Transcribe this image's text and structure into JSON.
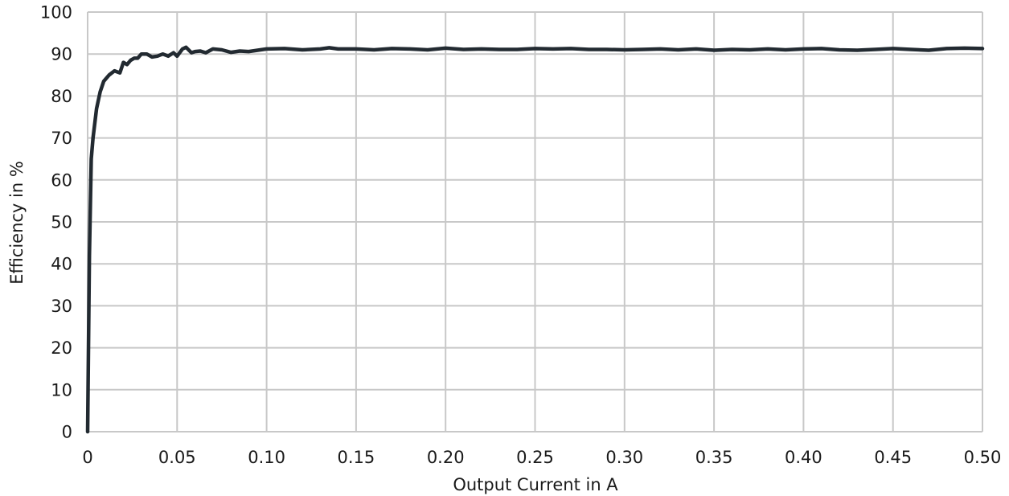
{
  "chart_data": {
    "type": "line",
    "title": "",
    "xlabel": "Output Current in A",
    "ylabel": "Efficiency in %",
    "xlim": [
      0,
      0.5
    ],
    "ylim": [
      0,
      100
    ],
    "grid": true,
    "x_ticks": [
      "0",
      "0.05",
      "0.10",
      "0.15",
      "0.20",
      "0.25",
      "0.30",
      "0.35",
      "0.40",
      "0.45",
      "0.50"
    ],
    "y_ticks": [
      "0",
      "10",
      "20",
      "30",
      "40",
      "50",
      "60",
      "70",
      "80",
      "90",
      "100"
    ],
    "colors": {
      "line": "#222a31",
      "grid": "#c8c8c8",
      "text": "#1a1a1a"
    },
    "series": [
      {
        "x": [
          0,
          0.001,
          0.002,
          0.003,
          0.005,
          0.007,
          0.009,
          0.012,
          0.015,
          0.018,
          0.02,
          0.022,
          0.024,
          0.026,
          0.028,
          0.03,
          0.033,
          0.036,
          0.039,
          0.042,
          0.045,
          0.048,
          0.05,
          0.053,
          0.055,
          0.058,
          0.06,
          0.063,
          0.066,
          0.07,
          0.075,
          0.08,
          0.085,
          0.09,
          0.1,
          0.11,
          0.12,
          0.13,
          0.135,
          0.14,
          0.15,
          0.16,
          0.17,
          0.18,
          0.19,
          0.2,
          0.21,
          0.22,
          0.23,
          0.24,
          0.25,
          0.26,
          0.27,
          0.28,
          0.29,
          0.3,
          0.31,
          0.32,
          0.33,
          0.34,
          0.35,
          0.36,
          0.37,
          0.38,
          0.39,
          0.4,
          0.41,
          0.42,
          0.43,
          0.44,
          0.45,
          0.46,
          0.47,
          0.48,
          0.49,
          0.5
        ],
        "y": [
          0,
          42,
          65,
          70,
          77,
          81,
          83.5,
          85,
          86,
          85.5,
          88,
          87.5,
          88.5,
          89,
          89,
          90,
          90,
          89.3,
          89.5,
          90,
          89.5,
          90.3,
          89.5,
          91.2,
          91.6,
          90.3,
          90.6,
          90.7,
          90.3,
          91.2,
          91,
          90.4,
          90.7,
          90.6,
          91.2,
          91.3,
          91,
          91.2,
          91.5,
          91.2,
          91.2,
          91,
          91.3,
          91.2,
          91,
          91.4,
          91.1,
          91.2,
          91.1,
          91.1,
          91.3,
          91.2,
          91.3,
          91.1,
          91.1,
          91.0,
          91.1,
          91.2,
          91.0,
          91.2,
          90.9,
          91.1,
          91.0,
          91.2,
          91.0,
          91.2,
          91.3,
          91.0,
          90.9,
          91.1,
          91.3,
          91.1,
          90.9,
          91.3,
          91.4,
          91.3
        ]
      }
    ]
  }
}
